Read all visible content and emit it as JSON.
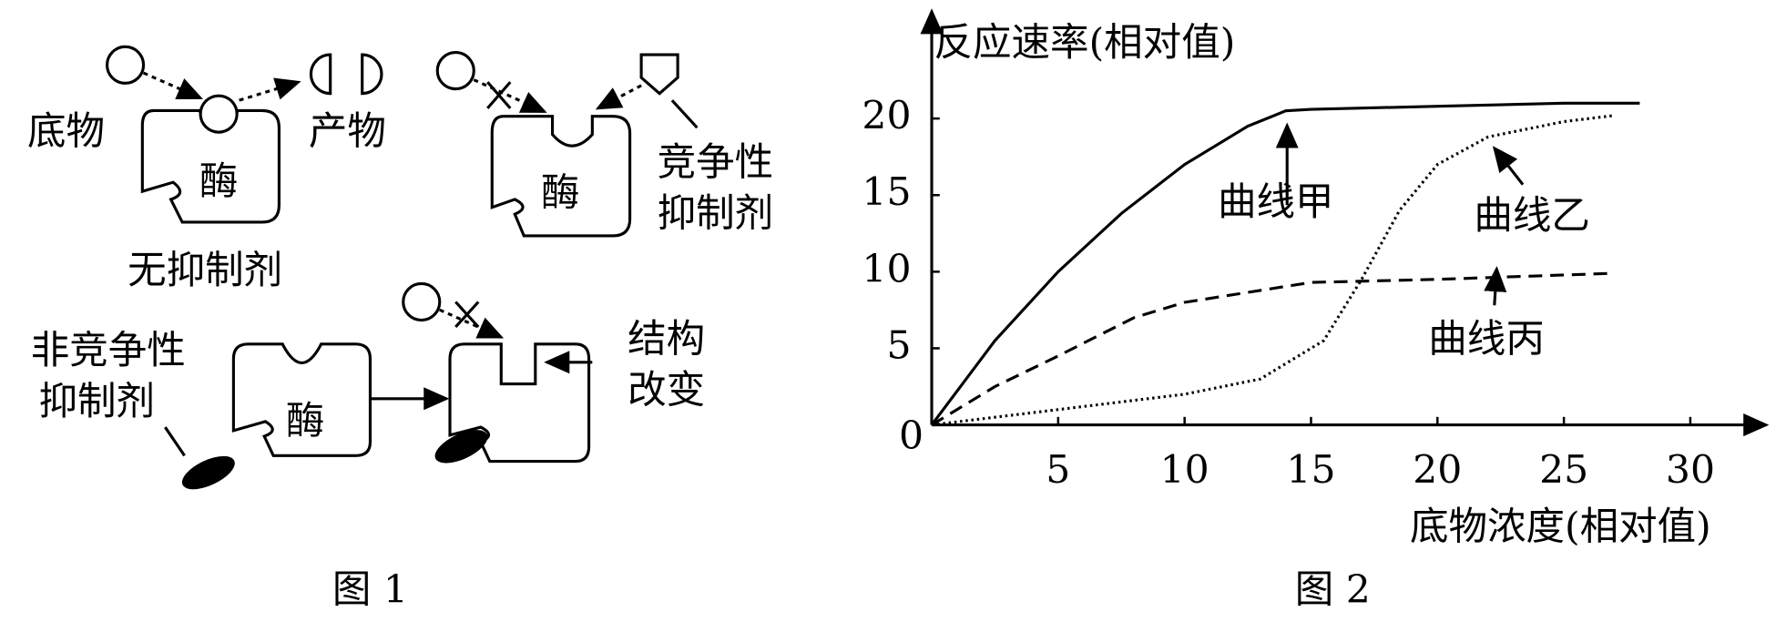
{
  "diagram": {
    "caption": "图 1",
    "substrate": "底物",
    "product": "产物",
    "enzyme": "酶",
    "no_inhibitor": "无抑制剂",
    "competitive": [
      "竞争性",
      "抑制剂"
    ],
    "noncompetitive": [
      "非竞争性",
      "抑制剂"
    ],
    "structure_change": [
      "结构",
      "改变"
    ]
  },
  "chart_data": {
    "type": "line",
    "caption": "图 2",
    "y_label": "反应速率(相对值)",
    "x_label": "底物浓度(相对值)",
    "origin_label": "0",
    "xlim": [
      0,
      33
    ],
    "ylim": [
      0,
      27
    ],
    "xticks": [
      5,
      10,
      15,
      20,
      25,
      30
    ],
    "yticks": [
      5,
      10,
      15,
      20
    ],
    "series": [
      {
        "name": "曲线甲",
        "color": "#000",
        "line_style": "solid",
        "x": [
          0,
          2.5,
          5,
          7.5,
          10,
          12.5,
          14,
          15,
          20,
          25,
          28
        ],
        "values": [
          0,
          5.5,
          10,
          13.8,
          17,
          19.5,
          20.5,
          20.6,
          20.8,
          21,
          21
        ]
      },
      {
        "name": "曲线乙",
        "color": "#000",
        "line_style": "dotted",
        "x": [
          0,
          5,
          10,
          13,
          15.5,
          17,
          18.5,
          20,
          22,
          25,
          27
        ],
        "values": [
          0,
          1,
          2,
          3,
          5.5,
          9.5,
          14,
          17,
          18.8,
          19.8,
          20.2
        ]
      },
      {
        "name": "曲线丙",
        "color": "#000",
        "line_style": "dashed",
        "x": [
          0,
          2.5,
          5,
          8,
          10,
          15,
          20,
          27
        ],
        "values": [
          0,
          2.5,
          4.5,
          7,
          8,
          9.3,
          9.5,
          9.9
        ]
      }
    ]
  }
}
